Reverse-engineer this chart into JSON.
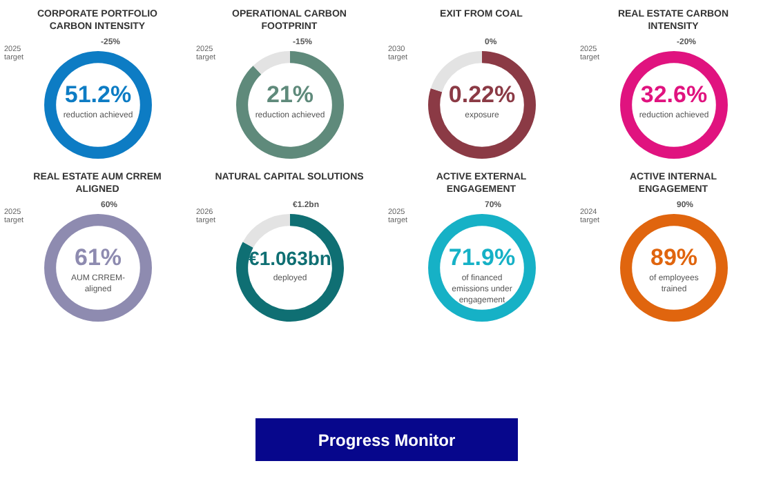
{
  "chart_data": [
    {
      "type": "pie",
      "title": "CORPORATE PORTFOLIO CARBON INTENSITY",
      "categories": [
        null
      ],
      "values": [
        100
      ],
      "colors": [
        "#0d7cc4"
      ],
      "annotations": [
        "51.2%",
        "reduction achieved",
        "2025 target",
        "-25%"
      ]
    },
    {
      "type": "donut",
      "title": "OPERATIONAL CARBON FOOTPRINT",
      "categories": [
        null,
        null
      ],
      "values": [
        88,
        12
      ],
      "colors": [
        "#5f8a7b",
        "#e3e3e3"
      ],
      "annotations": [
        "21%",
        "reduction achieved",
        "2025 target",
        "-15%"
      ]
    },
    {
      "type": "donut",
      "title": "EXIT FROM COAL",
      "categories": [
        null,
        null
      ],
      "values": [
        80,
        20
      ],
      "colors": [
        "#8b3a45",
        "#e3e3e3"
      ],
      "annotations": [
        "0.22%",
        "exposure",
        "2030 target",
        "0%"
      ]
    },
    {
      "type": "pie",
      "title": "REAL ESTATE CARBON INTENSITY",
      "categories": [
        null
      ],
      "values": [
        100
      ],
      "colors": [
        "#e0137f"
      ],
      "annotations": [
        "32.6%",
        "reduction achieved",
        "2025 target",
        "-20%"
      ]
    },
    {
      "type": "pie",
      "title": "REAL ESTATE AUM CRREM ALIGNED",
      "categories": [
        null
      ],
      "values": [
        100
      ],
      "colors": [
        "#8e8bb0"
      ],
      "annotations": [
        "61%",
        "AUM CRREM-aligned",
        "2025 target",
        "60%"
      ]
    },
    {
      "type": "donut",
      "title": "NATURAL CAPITAL SOLUTIONS",
      "categories": [
        null,
        null
      ],
      "values": [
        83,
        17
      ],
      "colors": [
        "#0f6f73",
        "#e3e3e3"
      ],
      "annotations": [
        "€1.063bn",
        "deployed",
        "2026 target",
        "€1.2bn"
      ]
    },
    {
      "type": "pie",
      "title": "ACTIVE EXTERNAL ENGAGEMENT",
      "categories": [
        null
      ],
      "values": [
        100
      ],
      "colors": [
        "#16b1c6"
      ],
      "annotations": [
        "71.9%",
        "of financed emissions under engagement",
        "2025 target",
        "70%"
      ]
    },
    {
      "type": "pie",
      "title": "ACTIVE INTERNAL ENGAGEMENT",
      "categories": [
        null
      ],
      "values": [
        100
      ],
      "colors": [
        "#e0650e"
      ],
      "annotations": [
        "89%",
        "of employees trained",
        "2024 target",
        "90%"
      ]
    },
    {
      "type": "other",
      "annotations": [
        "Progress Monitor"
      ]
    }
  ]
}
